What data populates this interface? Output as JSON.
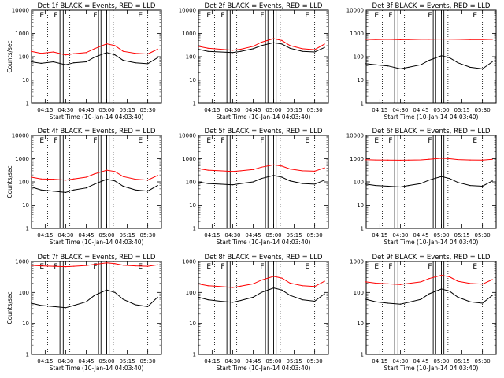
{
  "chart_data": [
    {
      "id": "p1",
      "type": "line",
      "title": "Det 1f BLACK = Events, RED = LLD",
      "ylabel": "Counts/sec",
      "xlabel": "Start Time (10-Jan-14 04:03:40)",
      "yscale": "log",
      "ylim": [
        1,
        10000
      ],
      "xlim": [
        "04:05",
        "05:40"
      ],
      "x_ticks": [
        "04:15",
        "04:30",
        "04:45",
        "05:00",
        "05:15",
        "05:30"
      ],
      "y_ticks": [
        "1",
        "10",
        "100",
        "1000",
        "10000"
      ],
      "markers": [
        "E",
        "F",
        "F",
        "E"
      ],
      "series": [
        {
          "name": "Events",
          "color": "#000000",
          "x": [
            4.08,
            4.2,
            4.35,
            4.5,
            4.6,
            4.75,
            4.85,
            5.0,
            5.1,
            5.2,
            5.35,
            5.5,
            5.62
          ],
          "y": [
            60,
            52,
            60,
            45,
            55,
            60,
            95,
            150,
            120,
            70,
            55,
            50,
            90
          ]
        },
        {
          "name": "LLD",
          "color": "#ff0000",
          "x": [
            4.08,
            4.2,
            4.35,
            4.5,
            4.6,
            4.75,
            4.85,
            5.0,
            5.1,
            5.2,
            5.35,
            5.5,
            5.62
          ],
          "y": [
            170,
            140,
            160,
            120,
            135,
            150,
            220,
            360,
            300,
            170,
            140,
            130,
            210
          ]
        }
      ]
    },
    {
      "id": "p2",
      "type": "line",
      "title": "Det 2f BLACK = Events, RED = LLD",
      "ylabel": "",
      "xlabel": "Start Time (10-Jan-14 04:03:40)",
      "yscale": "log",
      "ylim": [
        1,
        10000
      ],
      "xlim": [
        "04:05",
        "05:40"
      ],
      "x_ticks": [
        "04:15",
        "04:30",
        "04:45",
        "05:00",
        "05:15",
        "05:30"
      ],
      "y_ticks": [
        "1",
        "10",
        "100",
        "1000",
        "10000"
      ],
      "markers": [
        "E",
        "F",
        "F",
        "E"
      ],
      "series": [
        {
          "name": "Events",
          "color": "#000000",
          "x": [
            4.08,
            4.2,
            4.35,
            4.5,
            4.6,
            4.75,
            4.85,
            5.0,
            5.1,
            5.2,
            5.35,
            5.5,
            5.62
          ],
          "y": [
            210,
            170,
            160,
            150,
            170,
            220,
            300,
            400,
            350,
            230,
            170,
            160,
            250
          ]
        },
        {
          "name": "LLD",
          "color": "#ff0000",
          "x": [
            4.08,
            4.2,
            4.35,
            4.5,
            4.6,
            4.75,
            4.85,
            5.0,
            5.1,
            5.2,
            5.35,
            5.5,
            5.62
          ],
          "y": [
            280,
            230,
            210,
            190,
            210,
            280,
            420,
            600,
            500,
            300,
            220,
            200,
            350
          ]
        }
      ]
    },
    {
      "id": "p3",
      "type": "line",
      "title": "Det 3f BLACK = Events, RED = LLD",
      "ylabel": "",
      "xlabel": "Start Time (10-Jan-14 04:03:40)",
      "yscale": "log",
      "ylim": [
        1,
        10000
      ],
      "xlim": [
        "04:05",
        "05:40"
      ],
      "x_ticks": [
        "04:15",
        "04:30",
        "04:45",
        "05:00",
        "05:15",
        "05:30"
      ],
      "y_ticks": [
        "1",
        "10",
        "100",
        "1000",
        "10000"
      ],
      "markers": [
        "E",
        "F",
        "F",
        "E"
      ],
      "series": [
        {
          "name": "Events",
          "color": "#000000",
          "x": [
            4.08,
            4.2,
            4.35,
            4.5,
            4.6,
            4.75,
            4.85,
            5.0,
            5.1,
            5.2,
            5.35,
            5.5,
            5.62
          ],
          "y": [
            50,
            45,
            40,
            30,
            35,
            45,
            70,
            110,
            90,
            55,
            35,
            30,
            60
          ]
        },
        {
          "name": "LLD",
          "color": "#ff0000",
          "x": [
            4.08,
            4.2,
            4.35,
            4.5,
            4.6,
            4.75,
            4.85,
            5.0,
            5.1,
            5.2,
            5.35,
            5.5,
            5.62
          ],
          "y": [
            560,
            550,
            560,
            540,
            550,
            560,
            560,
            580,
            570,
            560,
            550,
            550,
            560
          ]
        }
      ]
    },
    {
      "id": "p4",
      "type": "line",
      "title": "Det 4f BLACK = Events, RED = LLD",
      "ylabel": "Counts/sec",
      "xlabel": "Start Time (10-Jan-14 04:03:40)",
      "yscale": "log",
      "ylim": [
        1,
        10000
      ],
      "xlim": [
        "04:05",
        "05:40"
      ],
      "x_ticks": [
        "04:15",
        "04:30",
        "04:45",
        "05:00",
        "05:15",
        "05:30"
      ],
      "y_ticks": [
        "1",
        "10",
        "100",
        "1000",
        "10000"
      ],
      "markers": [
        "E",
        "F",
        "F",
        "E"
      ],
      "series": [
        {
          "name": "Events",
          "color": "#000000",
          "x": [
            4.08,
            4.2,
            4.35,
            4.5,
            4.6,
            4.75,
            4.85,
            5.0,
            5.1,
            5.2,
            5.35,
            5.5,
            5.62
          ],
          "y": [
            60,
            45,
            40,
            35,
            45,
            55,
            80,
            130,
            110,
            65,
            45,
            40,
            70
          ]
        },
        {
          "name": "LLD",
          "color": "#ff0000",
          "x": [
            4.08,
            4.2,
            4.35,
            4.5,
            4.6,
            4.75,
            4.85,
            5.0,
            5.1,
            5.2,
            5.35,
            5.5,
            5.62
          ],
          "y": [
            160,
            135,
            130,
            120,
            135,
            160,
            220,
            320,
            280,
            170,
            130,
            120,
            190
          ]
        }
      ]
    },
    {
      "id": "p5",
      "type": "line",
      "title": "Det 5f BLACK = Events, RED = LLD",
      "ylabel": "",
      "xlabel": "Start Time (10-Jan-14 04:03:40)",
      "yscale": "log",
      "ylim": [
        1,
        10000
      ],
      "xlim": [
        "04:05",
        "05:40"
      ],
      "x_ticks": [
        "04:15",
        "04:30",
        "04:45",
        "05:00",
        "05:15",
        "05:30"
      ],
      "y_ticks": [
        "1",
        "10",
        "100",
        "1000",
        "10000"
      ],
      "markers": [
        "E",
        "F",
        "F",
        "E"
      ],
      "series": [
        {
          "name": "Events",
          "color": "#000000",
          "x": [
            4.08,
            4.2,
            4.35,
            4.5,
            4.6,
            4.75,
            4.85,
            5.0,
            5.1,
            5.2,
            5.35,
            5.5,
            5.62
          ],
          "y": [
            100,
            85,
            80,
            75,
            85,
            100,
            140,
            190,
            160,
            110,
            85,
            80,
            120
          ]
        },
        {
          "name": "LLD",
          "color": "#ff0000",
          "x": [
            4.08,
            4.2,
            4.35,
            4.5,
            4.6,
            4.75,
            4.85,
            5.0,
            5.1,
            5.2,
            5.35,
            5.5,
            5.62
          ],
          "y": [
            370,
            320,
            300,
            280,
            300,
            340,
            430,
            550,
            480,
            360,
            300,
            290,
            400
          ]
        }
      ]
    },
    {
      "id": "p6",
      "type": "line",
      "title": "Det 6f BLACK = Events, RED = LLD",
      "ylabel": "",
      "xlabel": "Start Time (10-Jan-14 04:03:40)",
      "yscale": "log",
      "ylim": [
        1,
        10000
      ],
      "xlim": [
        "04:05",
        "05:40"
      ],
      "x_ticks": [
        "04:15",
        "04:30",
        "04:45",
        "05:00",
        "05:15",
        "05:30"
      ],
      "y_ticks": [
        "1",
        "10",
        "100",
        "1000",
        "10000"
      ],
      "markers": [
        "E",
        "F",
        "F",
        "E"
      ],
      "series": [
        {
          "name": "Events",
          "color": "#000000",
          "x": [
            4.08,
            4.2,
            4.35,
            4.5,
            4.6,
            4.75,
            4.85,
            5.0,
            5.1,
            5.2,
            5.35,
            5.5,
            5.62
          ],
          "y": [
            80,
            70,
            65,
            60,
            70,
            85,
            120,
            170,
            140,
            95,
            70,
            65,
            110
          ]
        },
        {
          "name": "LLD",
          "color": "#ff0000",
          "x": [
            4.08,
            4.2,
            4.35,
            4.5,
            4.6,
            4.75,
            4.85,
            5.0,
            5.1,
            5.2,
            5.35,
            5.5,
            5.62
          ],
          "y": [
            900,
            880,
            870,
            860,
            870,
            890,
            950,
            1050,
            1000,
            920,
            880,
            870,
            940
          ]
        }
      ]
    },
    {
      "id": "p7",
      "type": "line",
      "title": "Det 7f BLACK = Events, RED = LLD",
      "ylabel": "Counts/sec",
      "xlabel": "Start Time (10-Jan-14 04:03:40)",
      "yscale": "log",
      "ylim": [
        1,
        1000
      ],
      "xlim": [
        "04:05",
        "05:40"
      ],
      "x_ticks": [
        "04:15",
        "04:30",
        "04:45",
        "05:00",
        "05:15",
        "05:30"
      ],
      "y_ticks": [
        "1",
        "10",
        "100",
        "1000"
      ],
      "markers": [
        "E",
        "F",
        "F",
        "E"
      ],
      "series": [
        {
          "name": "Events",
          "color": "#000000",
          "x": [
            4.08,
            4.2,
            4.35,
            4.5,
            4.6,
            4.75,
            4.85,
            5.0,
            5.1,
            5.2,
            5.35,
            5.5,
            5.62
          ],
          "y": [
            45,
            38,
            35,
            32,
            38,
            50,
            80,
            120,
            100,
            60,
            40,
            35,
            70
          ]
        },
        {
          "name": "LLD",
          "color": "#ff0000",
          "x": [
            4.08,
            4.2,
            4.35,
            4.5,
            4.6,
            4.75,
            4.85,
            5.0,
            5.1,
            5.2,
            5.35,
            5.5,
            5.62
          ],
          "y": [
            750,
            720,
            700,
            680,
            700,
            740,
            800,
            900,
            850,
            760,
            720,
            700,
            780
          ]
        }
      ]
    },
    {
      "id": "p8",
      "type": "line",
      "title": "Det 8f BLACK = Events, RED = LLD",
      "ylabel": "",
      "xlabel": "Start Time (10-Jan-14 04:03:40)",
      "yscale": "log",
      "ylim": [
        1,
        1000
      ],
      "xlim": [
        "04:05",
        "05:40"
      ],
      "x_ticks": [
        "04:15",
        "04:30",
        "04:45",
        "05:00",
        "05:15",
        "05:30"
      ],
      "y_ticks": [
        "1",
        "10",
        "100",
        "1000"
      ],
      "markers": [
        "E",
        "F",
        "F",
        "E"
      ],
      "series": [
        {
          "name": "Events",
          "color": "#000000",
          "x": [
            4.08,
            4.2,
            4.35,
            4.5,
            4.6,
            4.75,
            4.85,
            5.0,
            5.1,
            5.2,
            5.35,
            5.5,
            5.62
          ],
          "y": [
            70,
            58,
            52,
            48,
            55,
            70,
            100,
            140,
            120,
            80,
            58,
            52,
            90
          ]
        },
        {
          "name": "LLD",
          "color": "#ff0000",
          "x": [
            4.08,
            4.2,
            4.35,
            4.5,
            4.6,
            4.75,
            4.85,
            5.0,
            5.1,
            5.2,
            5.35,
            5.5,
            5.62
          ],
          "y": [
            190,
            165,
            155,
            145,
            160,
            190,
            250,
            330,
            290,
            200,
            165,
            155,
            230
          ]
        }
      ]
    },
    {
      "id": "p9",
      "type": "line",
      "title": "Det 9f BLACK = Events, RED = LLD",
      "ylabel": "",
      "xlabel": "Start Time (10-Jan-14 04:03:40)",
      "yscale": "log",
      "ylim": [
        1,
        1000
      ],
      "xlim": [
        "04:05",
        "05:40"
      ],
      "x_ticks": [
        "04:15",
        "04:30",
        "04:45",
        "05:00",
        "05:15",
        "05:30"
      ],
      "y_ticks": [
        "1",
        "10",
        "100",
        "1000"
      ],
      "markers": [
        "E",
        "F",
        "F",
        "E"
      ],
      "series": [
        {
          "name": "Events",
          "color": "#000000",
          "x": [
            4.08,
            4.2,
            4.35,
            4.5,
            4.6,
            4.75,
            4.85,
            5.0,
            5.1,
            5.2,
            5.35,
            5.5,
            5.62
          ],
          "y": [
            60,
            50,
            45,
            42,
            48,
            60,
            90,
            130,
            110,
            70,
            50,
            45,
            80
          ]
        },
        {
          "name": "LLD",
          "color": "#ff0000",
          "x": [
            4.08,
            4.2,
            4.35,
            4.5,
            4.6,
            4.75,
            4.85,
            5.0,
            5.1,
            5.2,
            5.35,
            5.5,
            5.62
          ],
          "y": [
            220,
            200,
            190,
            180,
            195,
            220,
            280,
            360,
            320,
            230,
            195,
            185,
            260
          ]
        }
      ]
    }
  ]
}
